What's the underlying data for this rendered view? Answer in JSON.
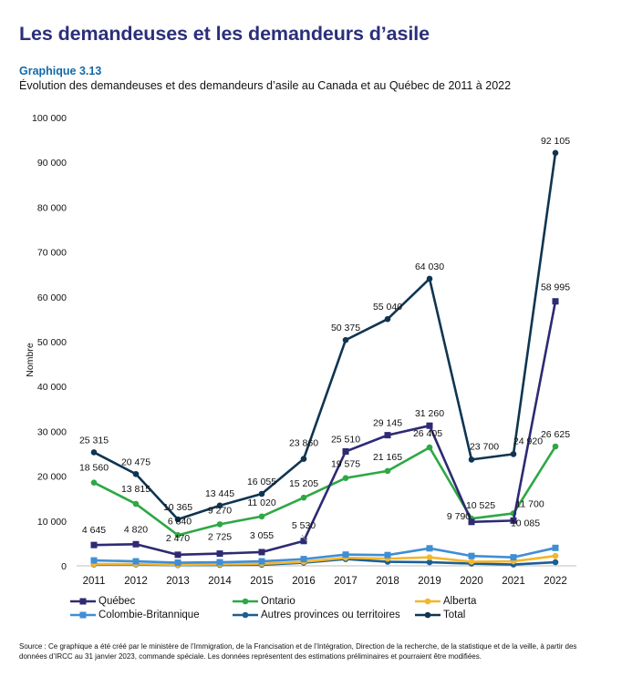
{
  "page": {
    "heading": "Les demandeuses et les demandeurs d’asile",
    "chart_number": "Graphique 3.13",
    "subtitle": "Évolution des demandeuses et des demandeurs d’asile au Canada et au Québec de 2011 à 2022",
    "source": "Source : Ce graphique a été créé par le ministère de l’Immigration, de la Francisation et de l’Intégration, Direction de la recherche, de la statistique et de la veille, à partir des données d’IRCC au 31 janvier 2023, commande spéciale. Les données représentent des estimations préliminaires et pourraient être modifiées."
  },
  "chart_data": {
    "type": "line",
    "title": "Évolution des demandeuses et des demandeurs d’asile au Canada et au Québec de 2011 à 2022",
    "xlabel": "",
    "ylabel": "Nombre",
    "ylim": [
      0,
      100000
    ],
    "yticks": [
      0,
      10000,
      20000,
      30000,
      40000,
      50000,
      60000,
      70000,
      80000,
      90000,
      100000
    ],
    "ytick_labels": [
      "0",
      "10 000",
      "20 000",
      "30 000",
      "40 000",
      "50 000",
      "60 000",
      "70 000",
      "80 000",
      "90 000",
      "100 000"
    ],
    "categories": [
      "2011",
      "2012",
      "2013",
      "2014",
      "2015",
      "2016",
      "2017",
      "2018",
      "2019",
      "2020",
      "2021",
      "2022"
    ],
    "grid": false,
    "legend_position": "bottom",
    "series": [
      {
        "name": "Québec",
        "key": "quebec",
        "color": "#2e2a73",
        "marker": "square",
        "values": [
          4645,
          4820,
          2470,
          2725,
          3055,
          5530,
          25510,
          29145,
          31260,
          9790,
          10085,
          58995
        ],
        "labels": [
          "4 645",
          "4 820",
          "2 470",
          "2 725",
          "3 055",
          "5 530",
          "25 510",
          "29 145",
          "31 260",
          "9 790",
          "10 085",
          "58 995"
        ]
      },
      {
        "name": "Ontario",
        "key": "ontario",
        "color": "#2da844",
        "marker": "circle",
        "values": [
          18560,
          13815,
          6840,
          9270,
          11020,
          15205,
          19575,
          21165,
          26405,
          10525,
          11700,
          26625
        ],
        "labels": [
          "18 560",
          "13 815",
          "6 840",
          "9 270",
          "11 020",
          "15 205",
          "19 575",
          "21 165",
          "26 405",
          "10 525",
          "11 700",
          "26 625"
        ]
      },
      {
        "name": "Alberta",
        "key": "alberta",
        "color": "#f5b62a",
        "marker": "circle",
        "values": [
          400,
          400,
          250,
          350,
          450,
          900,
          1800,
          1600,
          1900,
          900,
          1000,
          2200
        ],
        "labels": []
      },
      {
        "name": "Colombie-Britannique",
        "key": "colombie_britannique",
        "color": "#3f8ed6",
        "marker": "square",
        "values": [
          1200,
          1000,
          700,
          800,
          1000,
          1500,
          2500,
          2400,
          3900,
          2200,
          1900,
          4000
        ],
        "labels": []
      },
      {
        "name": "Autres provinces ou territoires",
        "key": "autres",
        "color": "#1b5f93",
        "marker": "circle",
        "values": [
          300,
          300,
          150,
          200,
          250,
          700,
          1500,
          900,
          800,
          500,
          300,
          800
        ],
        "labels": []
      },
      {
        "name": "Total",
        "key": "total",
        "color": "#0f3551",
        "marker": "circle",
        "values": [
          25315,
          20475,
          10365,
          13445,
          16055,
          23860,
          50375,
          55040,
          64030,
          23700,
          24920,
          92105
        ],
        "labels": [
          "25 315",
          "20 475",
          "10 365",
          "13 445",
          "16 055",
          "23 860",
          "50 375",
          "55 040",
          "64 030",
          "23 700",
          "24 920",
          "92 105"
        ]
      }
    ]
  }
}
